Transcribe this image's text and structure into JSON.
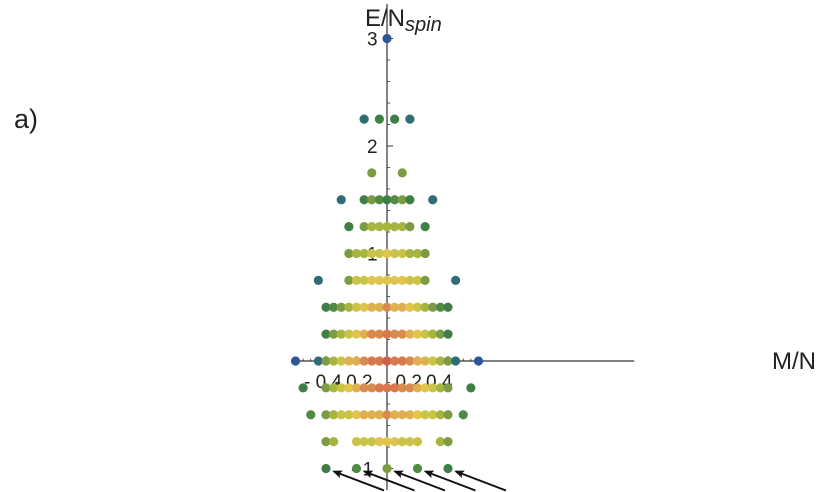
{
  "chart_data": {
    "type": "scatter",
    "panel_label": "a)",
    "xlabel": "M/N",
    "ylabel_main": "E/N",
    "ylabel_sub": "spin",
    "x_ticks": [
      {
        "value": -0.4,
        "label": "- 0.4"
      },
      {
        "value": -0.2,
        "label": "- 0.2"
      },
      {
        "value": 0.2,
        "label": "0.2"
      },
      {
        "value": 0.4,
        "label": "0.4"
      }
    ],
    "y_ticks": [
      {
        "value": -1,
        "label": "- 1"
      },
      {
        "value": 1,
        "label": "1"
      },
      {
        "value": 2,
        "label": "2"
      },
      {
        "value": 3,
        "label": "3"
      }
    ],
    "xlim": [
      -0.605,
      0.605
    ],
    "ylim": [
      -1.2,
      3.35
    ],
    "grid": false,
    "rows": [
      {
        "y": 3.0,
        "xs": [
          0.0
        ],
        "colors": [
          "#2f5597"
        ]
      },
      {
        "y": 2.25,
        "xs": [
          -0.15,
          -0.05,
          0.05,
          0.15
        ],
        "colors": [
          "#2e6d75",
          "#3f7f46",
          "#3f7f46",
          "#2e6d75"
        ]
      },
      {
        "y": 1.75,
        "xs": [
          -0.1,
          0.1
        ],
        "colors": [
          "#7c9c44",
          "#7c9c44"
        ]
      },
      {
        "y": 1.5,
        "xs": [
          -0.3,
          -0.15,
          -0.1,
          -0.05,
          0.0,
          0.05,
          0.1,
          0.15,
          0.3
        ],
        "colors": [
          "#2e6d75",
          "#3f7f46",
          "#7c9c44",
          "#4f8c43",
          "#3f7f46",
          "#4f8c43",
          "#7c9c44",
          "#3f7f46",
          "#2e6d75"
        ]
      },
      {
        "y": 1.25,
        "xs": [
          -0.25,
          -0.15,
          -0.1,
          -0.05,
          0.0,
          0.05,
          0.1,
          0.15,
          0.25
        ],
        "colors": [
          "#3f7f46",
          "#7c9c44",
          "#a7b43e",
          "#a7b43e",
          "#a7b43e",
          "#a7b43e",
          "#a7b43e",
          "#7c9c44",
          "#3f7f46"
        ]
      },
      {
        "y": 1.0,
        "xs": [
          -0.25,
          -0.2,
          -0.15,
          -0.1,
          -0.05,
          0.0,
          0.05,
          0.1,
          0.15,
          0.2,
          0.25
        ],
        "colors": [
          "#7c9c44",
          "#a7b43e",
          "#a7b43e",
          "#c9c447",
          "#c9c447",
          "#e0c44c",
          "#c9c447",
          "#c9c447",
          "#a7b43e",
          "#a7b43e",
          "#7c9c44"
        ]
      },
      {
        "y": 0.75,
        "xs": [
          -0.45,
          -0.25,
          -0.2,
          -0.15,
          -0.1,
          -0.05,
          0.0,
          0.05,
          0.1,
          0.15,
          0.2,
          0.25,
          0.45
        ],
        "colors": [
          "#2e6d75",
          "#7c9c44",
          "#c9c447",
          "#c9c447",
          "#e0c44c",
          "#e0c44c",
          "#e0c44c",
          "#e0c44c",
          "#e0c44c",
          "#c9c447",
          "#c9c447",
          "#7c9c44",
          "#2e6d75"
        ]
      },
      {
        "y": 0.5,
        "xs": [
          -0.4,
          -0.35,
          -0.3,
          -0.25,
          -0.2,
          -0.15,
          -0.1,
          -0.05,
          0.0,
          0.05,
          0.1,
          0.15,
          0.2,
          0.25,
          0.3,
          0.35,
          0.4
        ],
        "colors": [
          "#3f7f46",
          "#4f8c43",
          "#7c9c44",
          "#a7b43e",
          "#c9c447",
          "#e0c44c",
          "#e0b050",
          "#e0b050",
          "#d98a4e",
          "#e0b050",
          "#e0b050",
          "#e0c44c",
          "#c9c447",
          "#a7b43e",
          "#7c9c44",
          "#4f8c43",
          "#3f7f46"
        ]
      },
      {
        "y": 0.25,
        "xs": [
          -0.4,
          -0.35,
          -0.3,
          -0.25,
          -0.2,
          -0.15,
          -0.1,
          -0.05,
          0.0,
          0.05,
          0.1,
          0.15,
          0.2,
          0.25,
          0.3,
          0.35,
          0.4
        ],
        "colors": [
          "#3f7f46",
          "#7c9c44",
          "#a7b43e",
          "#c9c447",
          "#e0c44c",
          "#e0b050",
          "#d98a4e",
          "#d98a4e",
          "#d9784d",
          "#d98a4e",
          "#d98a4e",
          "#e0b050",
          "#e0c44c",
          "#c9c447",
          "#a7b43e",
          "#7c9c44",
          "#3f7f46"
        ]
      },
      {
        "y": 0.0,
        "xs": [
          -0.6,
          -0.45,
          -0.4,
          -0.35,
          -0.3,
          -0.25,
          -0.2,
          -0.15,
          -0.1,
          -0.05,
          0.0,
          0.05,
          0.1,
          0.15,
          0.2,
          0.25,
          0.3,
          0.35,
          0.4,
          0.45,
          0.6
        ],
        "colors": [
          "#2f5597",
          "#2e6d75",
          "#7c9c44",
          "#a7b43e",
          "#c9c447",
          "#e0b050",
          "#e0b050",
          "#d98a4e",
          "#d9784d",
          "#d9784d",
          "#d05f48",
          "#d9784d",
          "#d9784d",
          "#d98a4e",
          "#e0b050",
          "#e0b050",
          "#c9c447",
          "#a7b43e",
          "#7c9c44",
          "#2e6d75",
          "#2f5597"
        ]
      },
      {
        "y": -0.25,
        "xs": [
          -0.55,
          -0.4,
          -0.35,
          -0.3,
          -0.25,
          -0.2,
          -0.15,
          -0.1,
          -0.05,
          0.0,
          0.05,
          0.1,
          0.15,
          0.2,
          0.25,
          0.3,
          0.35,
          0.4,
          0.55
        ],
        "colors": [
          "#3f7f46",
          "#7c9c44",
          "#a7b43e",
          "#c9c447",
          "#e0c44c",
          "#e0b050",
          "#d98a4e",
          "#d98a4e",
          "#d9784d",
          "#d9784d",
          "#d9784d",
          "#d98a4e",
          "#d98a4e",
          "#e0b050",
          "#e0c44c",
          "#c9c447",
          "#a7b43e",
          "#7c9c44",
          "#3f7f46"
        ]
      },
      {
        "y": -0.5,
        "xs": [
          -0.5,
          -0.4,
          -0.35,
          -0.3,
          -0.25,
          -0.2,
          -0.15,
          -0.1,
          -0.05,
          0.0,
          0.05,
          0.1,
          0.15,
          0.2,
          0.25,
          0.3,
          0.35,
          0.4,
          0.5
        ],
        "colors": [
          "#4f8c43",
          "#7c9c44",
          "#a7b43e",
          "#c9c447",
          "#c9c447",
          "#e0c44c",
          "#e0b050",
          "#e0b050",
          "#e0b050",
          "#d98a4e",
          "#e0b050",
          "#e0b050",
          "#e0b050",
          "#e0c44c",
          "#c9c447",
          "#c9c447",
          "#a7b43e",
          "#7c9c44",
          "#4f8c43"
        ]
      },
      {
        "y": -0.75,
        "xs": [
          -0.4,
          -0.35,
          -0.2,
          -0.15,
          -0.1,
          -0.05,
          0.0,
          0.05,
          0.1,
          0.15,
          0.2,
          0.35,
          0.4
        ],
        "colors": [
          "#7c9c44",
          "#a7b43e",
          "#c9c447",
          "#c9c447",
          "#c9c447",
          "#e0c44c",
          "#e0c44c",
          "#e0c44c",
          "#c9c447",
          "#c9c447",
          "#c9c447",
          "#a7b43e",
          "#7c9c44"
        ]
      },
      {
        "y": -1.0,
        "xs": [
          -0.4,
          -0.2,
          0.0,
          0.2,
          0.4
        ],
        "colors": [
          "#3f7f46",
          "#4f8c43",
          "#7c9c44",
          "#4f8c43",
          "#3f7f46"
        ]
      }
    ],
    "arrows_at": [
      {
        "x": -0.4,
        "y": -1.0
      },
      {
        "x": -0.2,
        "y": -1.0
      },
      {
        "x": 0.0,
        "y": -1.0
      },
      {
        "x": 0.2,
        "y": -1.0
      },
      {
        "x": 0.4,
        "y": -1.0
      }
    ]
  }
}
